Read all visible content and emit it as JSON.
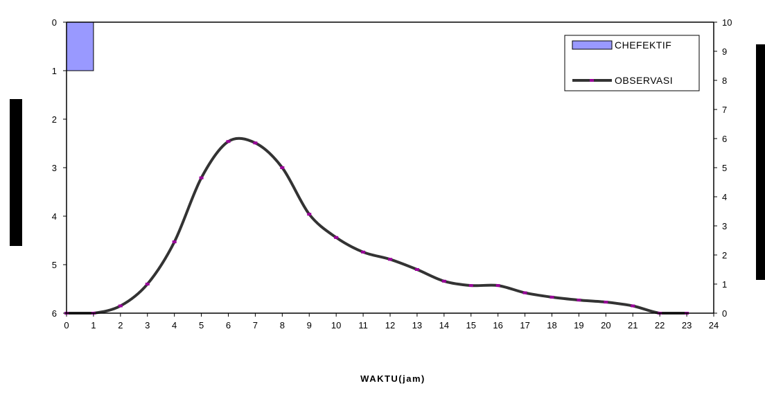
{
  "chart_data": {
    "type": "line",
    "xlabel": "WAKTU(jam)",
    "x_ticks": [
      0,
      1,
      2,
      3,
      4,
      5,
      6,
      7,
      8,
      9,
      10,
      11,
      12,
      13,
      14,
      15,
      16,
      17,
      18,
      19,
      20,
      21,
      22,
      23,
      24
    ],
    "xlim": [
      0,
      24
    ],
    "y_left_lim": [
      0,
      6
    ],
    "y_left_inverted": true,
    "y_left_ticks": [
      0,
      1,
      2,
      3,
      4,
      5,
      6
    ],
    "y_right_lim": [
      0,
      10
    ],
    "y_right_ticks": [
      0,
      1,
      2,
      3,
      4,
      5,
      6,
      7,
      8,
      9,
      10
    ],
    "grid": false,
    "legend_position": "top-right",
    "legend": [
      "CHEFEKTIF",
      "OBSERVASI"
    ],
    "series": [
      {
        "name": "CHEFEKTIF",
        "type": "bar",
        "axis": "left-inverted",
        "color": "#9999ff",
        "x": [
          0.5
        ],
        "values": [
          1.0
        ]
      },
      {
        "name": "OBSERVASI",
        "type": "line",
        "axis": "right",
        "color": "#333333",
        "marker_color": "#990099",
        "x": [
          0,
          1,
          2,
          3,
          4,
          5,
          6,
          7,
          8,
          9,
          10,
          11,
          12,
          13,
          14,
          15,
          16,
          17,
          18,
          19,
          20,
          21,
          22,
          23
        ],
        "values": [
          0,
          0,
          0.25,
          1.0,
          2.45,
          4.65,
          5.9,
          5.85,
          5.0,
          3.4,
          2.6,
          2.1,
          1.85,
          1.5,
          1.1,
          0.95,
          0.95,
          0.7,
          0.55,
          0.45,
          0.38,
          0.25,
          0,
          0
        ]
      }
    ]
  }
}
